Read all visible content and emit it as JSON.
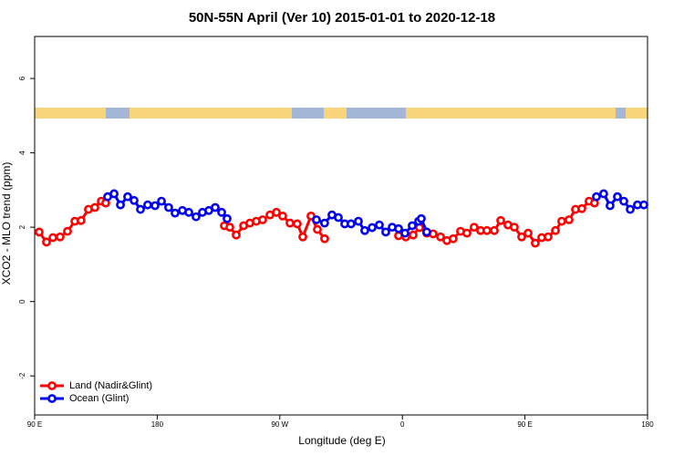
{
  "chart_data": {
    "type": "line",
    "title": "50N-55N April (Ver 10)   2015-01-01 to 2020-12-18",
    "x_label": "Longitude (deg E)",
    "y_label": "XCO2 - MLO trend (ppm)",
    "xlim": [
      90,
      540
    ],
    "ylim": [
      -3.05,
      7.13
    ],
    "xticks": [
      {
        "value": 90,
        "label": "90 E"
      },
      180,
      {
        "value": 270,
        "label": "90 W"
      },
      {
        "value": 360,
        "label": "0"
      },
      {
        "value": 450,
        "label": "90 E"
      },
      {
        "value": 540,
        "label": "180"
      }
    ],
    "yticks": [
      -2,
      0,
      2,
      4,
      6
    ],
    "legend": "bottom-left",
    "series": [
      {
        "name": "Land (Nadir&Glint)",
        "color": "#ff0000",
        "x": [
          93.3,
          98.7,
          103.4,
          108.7,
          114.1,
          119.5,
          124.1,
          129.5,
          134.2,
          138.9,
          142.2,
          null,
          229.3,
          233.3,
          238.0,
          243.4,
          248.0,
          252.7,
          257.4,
          262.8,
          267.5,
          272.1,
          277.5,
          282.8,
          286.9,
          292.9,
          297.6,
          302.9,
          null,
          357.2,
          362.5,
          367.9,
          372.6,
          377.9,
          382.6,
          388.0,
          392.7,
          397.3,
          402.7,
          407.4,
          412.7,
          417.4,
          422.1,
          427.5,
          432.2,
          437.5,
          442.2,
          447.6,
          452.3,
          457.6,
          462.3,
          467.0,
          472.4,
          477.0,
          482.4,
          487.1,
          491.8,
          497.1,
          501.1
        ],
        "values": [
          1.87,
          1.6,
          1.72,
          1.74,
          1.89,
          2.16,
          2.18,
          2.48,
          2.53,
          2.7,
          2.65,
          null,
          2.04,
          2.0,
          1.79,
          2.04,
          2.11,
          2.16,
          2.2,
          2.33,
          2.4,
          2.3,
          2.11,
          2.09,
          1.74,
          2.3,
          1.94,
          1.69,
          null,
          1.77,
          1.74,
          1.79,
          1.99,
          1.84,
          1.82,
          1.74,
          1.64,
          1.69,
          1.89,
          1.84,
          2.0,
          1.91,
          1.91,
          1.91,
          2.18,
          2.06,
          2.0,
          1.74,
          1.84,
          1.57,
          1.72,
          1.74,
          1.91,
          2.16,
          2.2,
          2.48,
          2.5,
          2.7,
          2.65
        ]
      },
      {
        "name": "Ocean (Glint)",
        "color": "#0000ee",
        "x": [
          143.6,
          148.3,
          153.0,
          158.3,
          163.0,
          167.7,
          173.0,
          178.4,
          183.1,
          188.4,
          193.1,
          198.5,
          203.2,
          208.5,
          213.2,
          217.9,
          222.6,
          227.3,
          231.3,
          null,
          296.9,
          302.9,
          308.3,
          313.0,
          317.7,
          322.3,
          327.7,
          332.4,
          337.8,
          343.1,
          347.8,
          352.5,
          357.2,
          361.9,
          367.2,
          371.9,
          373.9,
          377.9,
          null,
          502.5,
          507.8,
          512.5,
          517.9,
          522.6,
          527.3,
          532.6,
          537.3
        ],
        "values": [
          2.82,
          2.9,
          2.6,
          2.82,
          2.72,
          2.48,
          2.6,
          2.58,
          2.7,
          2.53,
          2.38,
          2.45,
          2.4,
          2.28,
          2.4,
          2.45,
          2.53,
          2.4,
          2.23,
          null,
          2.2,
          2.11,
          2.33,
          2.26,
          2.09,
          2.09,
          2.16,
          1.91,
          1.99,
          2.06,
          1.87,
          2.0,
          1.96,
          1.84,
          2.04,
          2.16,
          2.23,
          1.87,
          null,
          2.82,
          2.9,
          2.58,
          2.82,
          2.7,
          2.48,
          2.6,
          2.6
        ]
      }
    ]
  }
}
